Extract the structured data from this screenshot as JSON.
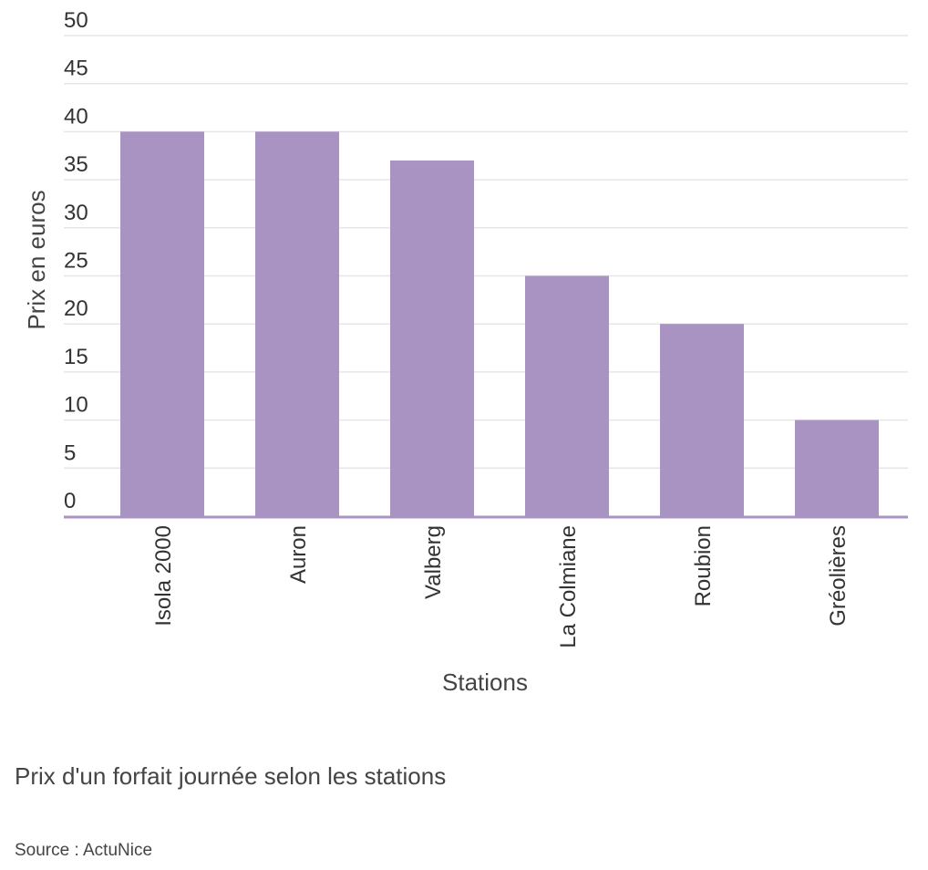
{
  "chart_data": {
    "type": "bar",
    "title": "Prix d'un forfait journée selon les stations",
    "source": "Source : ActuNice",
    "xlabel": "Stations",
    "ylabel": "Prix en euros",
    "categories": [
      "Isola 2000",
      "Auron",
      "Valberg",
      "La Colmiane",
      "Roubion",
      "Gréolières"
    ],
    "values": [
      40,
      40,
      37,
      25,
      20,
      10
    ],
    "ylim": [
      0,
      50
    ],
    "yticks": [
      0,
      5,
      10,
      15,
      20,
      25,
      30,
      35,
      40,
      45,
      50
    ],
    "grid": true,
    "legend": "none",
    "bar_color": "#a893c2",
    "axis_color": "#a893c2",
    "grid_color": "#e6e6e6"
  }
}
